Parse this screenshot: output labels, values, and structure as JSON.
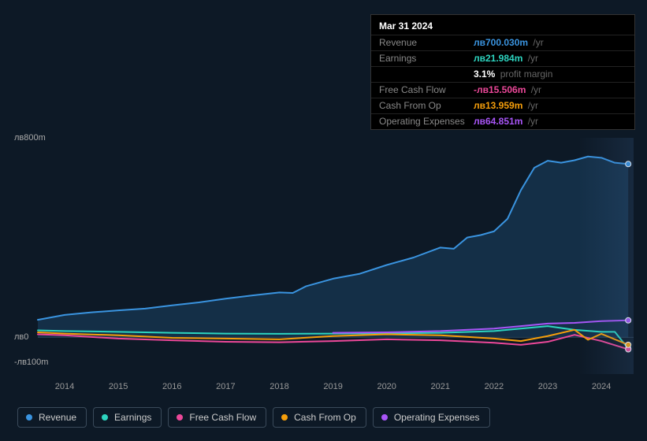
{
  "background_color": "#0d1926",
  "chart": {
    "type": "line",
    "ylim": [
      -100,
      800
    ],
    "baseline_value": 0,
    "ytick_labels": [
      {
        "v": 800,
        "label": "лв800m"
      },
      {
        "v": 0,
        "label": "лв0"
      },
      {
        "v": -100,
        "label": "-лв100m"
      }
    ],
    "x_years": [
      2014,
      2015,
      2016,
      2017,
      2018,
      2019,
      2020,
      2021,
      2022,
      2023,
      2024
    ],
    "x_range": [
      2013.5,
      2024.6
    ],
    "series": [
      {
        "name": "Revenue",
        "color": "#3a94e0",
        "fill": "rgba(58,148,224,0.18)",
        "points": [
          [
            2013.5,
            70
          ],
          [
            2014,
            90
          ],
          [
            2014.5,
            100
          ],
          [
            2015,
            108
          ],
          [
            2015.5,
            115
          ],
          [
            2016,
            128
          ],
          [
            2016.5,
            140
          ],
          [
            2017,
            155
          ],
          [
            2017.5,
            168
          ],
          [
            2018,
            180
          ],
          [
            2018.25,
            178
          ],
          [
            2018.5,
            205
          ],
          [
            2019,
            235
          ],
          [
            2019.5,
            255
          ],
          [
            2020,
            290
          ],
          [
            2020.5,
            320
          ],
          [
            2021,
            360
          ],
          [
            2021.25,
            355
          ],
          [
            2021.5,
            400
          ],
          [
            2021.75,
            410
          ],
          [
            2022,
            425
          ],
          [
            2022.25,
            475
          ],
          [
            2022.5,
            590
          ],
          [
            2022.75,
            680
          ],
          [
            2023,
            708
          ],
          [
            2023.25,
            700
          ],
          [
            2023.5,
            710
          ],
          [
            2023.75,
            725
          ],
          [
            2024,
            720
          ],
          [
            2024.25,
            700
          ],
          [
            2024.5,
            695
          ]
        ]
      },
      {
        "name": "Earnings",
        "color": "#2dd4bf",
        "points": [
          [
            2013.5,
            28
          ],
          [
            2014,
            25
          ],
          [
            2015,
            22
          ],
          [
            2016,
            18
          ],
          [
            2017,
            15
          ],
          [
            2018,
            14
          ],
          [
            2019,
            15
          ],
          [
            2020,
            16
          ],
          [
            2021,
            18
          ],
          [
            2022,
            25
          ],
          [
            2022.5,
            35
          ],
          [
            2023,
            45
          ],
          [
            2023.5,
            30
          ],
          [
            2024,
            22
          ],
          [
            2024.25,
            22
          ],
          [
            2024.5,
            -45
          ]
        ]
      },
      {
        "name": "Free Cash Flow",
        "color": "#ec4899",
        "points": [
          [
            2013.5,
            12
          ],
          [
            2014,
            8
          ],
          [
            2015,
            -5
          ],
          [
            2016,
            -12
          ],
          [
            2017,
            -18
          ],
          [
            2018,
            -20
          ],
          [
            2019,
            -15
          ],
          [
            2020,
            -8
          ],
          [
            2021,
            -12
          ],
          [
            2022,
            -22
          ],
          [
            2022.5,
            -30
          ],
          [
            2023,
            -18
          ],
          [
            2023.5,
            10
          ],
          [
            2024,
            -15
          ],
          [
            2024.5,
            -48
          ]
        ]
      },
      {
        "name": "Cash From Op",
        "color": "#f59e0b",
        "points": [
          [
            2013.5,
            20
          ],
          [
            2014,
            15
          ],
          [
            2015,
            8
          ],
          [
            2016,
            -2
          ],
          [
            2017,
            -5
          ],
          [
            2018,
            -8
          ],
          [
            2019,
            5
          ],
          [
            2020,
            12
          ],
          [
            2021,
            8
          ],
          [
            2022,
            -5
          ],
          [
            2022.5,
            -15
          ],
          [
            2023,
            5
          ],
          [
            2023.5,
            30
          ],
          [
            2023.75,
            -10
          ],
          [
            2024,
            14
          ],
          [
            2024.5,
            -30
          ]
        ]
      },
      {
        "name": "Operating Expenses",
        "color": "#a855f7",
        "x_start": 2019,
        "points": [
          [
            2019,
            18
          ],
          [
            2020,
            20
          ],
          [
            2021,
            25
          ],
          [
            2022,
            35
          ],
          [
            2022.5,
            45
          ],
          [
            2023,
            55
          ],
          [
            2023.5,
            58
          ],
          [
            2024,
            65
          ],
          [
            2024.5,
            68
          ]
        ]
      }
    ]
  },
  "tooltip": {
    "title": "Mar 31 2024",
    "rows": [
      {
        "label": "Revenue",
        "prefix": "лв",
        "value": "700.030m",
        "suffix": "/yr",
        "color": "#3a94e0"
      },
      {
        "label": "Earnings",
        "prefix": "лв",
        "value": "21.984m",
        "suffix": "/yr",
        "color": "#2dd4bf"
      },
      {
        "label": "",
        "prefix": "",
        "value": "3.1%",
        "suffix": "profit margin",
        "color": "#ffffff"
      },
      {
        "label": "Free Cash Flow",
        "prefix": "-лв",
        "value": "15.506m",
        "suffix": "/yr",
        "color": "#ec4899"
      },
      {
        "label": "Cash From Op",
        "prefix": "лв",
        "value": "13.959m",
        "suffix": "/yr",
        "color": "#f59e0b"
      },
      {
        "label": "Operating Expenses",
        "prefix": "лв",
        "value": "64.851m",
        "suffix": "/yr",
        "color": "#a855f7"
      }
    ]
  },
  "marker_x": 2024.5,
  "marker_dot_radius": 3.5
}
